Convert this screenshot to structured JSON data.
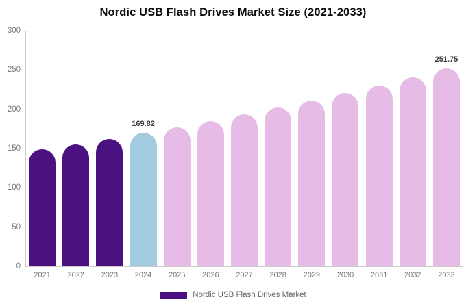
{
  "title": "Nordic USB Flash Drives Market Size (2021-2033)",
  "legend": {
    "label": "Nordic USB Flash Drives Market"
  },
  "colors": {
    "historical": "#4B1180",
    "current": "#A3CBE0",
    "forecast": "#E6BCE6",
    "axis_line": "#CCCCCC",
    "tick_text": "#7A7A7A",
    "data_label_text": "#3B3B3B",
    "title_text": "#0B0B0B",
    "legend_text": "#666666"
  },
  "chart_data": {
    "type": "bar",
    "title": "Nordic USB Flash Drives Market Size (2021-2033)",
    "categories": [
      "2021",
      "2022",
      "2023",
      "2024",
      "2025",
      "2026",
      "2027",
      "2028",
      "2029",
      "2030",
      "2031",
      "2032",
      "2033"
    ],
    "values": [
      148.9,
      155.5,
      162.5,
      169.82,
      177.4,
      185.3,
      193.6,
      202.3,
      211.3,
      220.8,
      230.6,
      240.9,
      251.75
    ],
    "bar_color_keys": [
      "historical",
      "historical",
      "historical",
      "current",
      "forecast",
      "forecast",
      "forecast",
      "forecast",
      "forecast",
      "forecast",
      "forecast",
      "forecast",
      "forecast"
    ],
    "point_labels": {
      "2024": "169.82",
      "2033": "251.75"
    },
    "xlabel": "",
    "ylabel": "",
    "ylim": [
      0,
      300
    ],
    "yticks": [
      0,
      50,
      100,
      150,
      200,
      250,
      300
    ],
    "grid": false,
    "legend_position": "bottom",
    "legend_entries": [
      "Nordic USB Flash Drives Market"
    ]
  }
}
